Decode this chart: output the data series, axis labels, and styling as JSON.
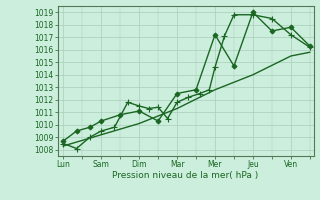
{
  "background_color": "#cceedd",
  "plot_bg_color": "#cceedd",
  "grid_color": "#aaccbb",
  "line_color": "#1a6622",
  "x_labels": [
    "Lun",
    "Sam",
    "Dim",
    "Mar",
    "Mer",
    "Jeu",
    "Ven"
  ],
  "xlabel": "Pression niveau de la mer( hPa )",
  "ylim": [
    1007.5,
    1019.5
  ],
  "yticks": [
    1008,
    1009,
    1010,
    1011,
    1012,
    1013,
    1014,
    1015,
    1016,
    1017,
    1018,
    1019
  ],
  "xlim": [
    -0.15,
    6.6
  ],
  "series": [
    {
      "x": [
        0.0,
        0.35,
        0.7,
        1.0,
        1.35,
        1.7,
        2.0,
        2.25,
        2.5,
        2.75,
        3.0,
        3.3,
        3.6,
        3.85,
        4.0,
        4.25,
        4.5,
        5.0,
        5.5,
        6.0,
        6.5
      ],
      "y": [
        1008.5,
        1008.1,
        1009.0,
        1009.5,
        1009.8,
        1011.8,
        1011.5,
        1011.3,
        1011.4,
        1010.5,
        1011.8,
        1012.2,
        1012.5,
        1012.8,
        1014.6,
        1017.1,
        1018.8,
        1018.8,
        1018.5,
        1017.2,
        1016.2
      ],
      "marker": "+",
      "markersize": 4,
      "linewidth": 1.0
    },
    {
      "x": [
        0.0,
        0.35,
        0.7,
        1.0,
        1.5,
        2.0,
        2.5,
        3.0,
        3.5,
        4.0,
        4.5,
        5.0,
        5.5,
        6.0,
        6.5
      ],
      "y": [
        1008.7,
        1009.5,
        1009.8,
        1010.3,
        1010.8,
        1011.1,
        1010.3,
        1012.5,
        1012.8,
        1017.2,
        1014.7,
        1019.0,
        1017.5,
        1017.8,
        1016.3
      ],
      "marker": "D",
      "markersize": 2.5,
      "linewidth": 1.0
    },
    {
      "x": [
        0.0,
        1.0,
        2.0,
        3.0,
        4.0,
        5.0,
        6.0,
        6.5
      ],
      "y": [
        1008.3,
        1009.2,
        1010.1,
        1011.3,
        1012.8,
        1014.0,
        1015.5,
        1015.8
      ],
      "marker": null,
      "markersize": 0,
      "linewidth": 1.0
    }
  ]
}
